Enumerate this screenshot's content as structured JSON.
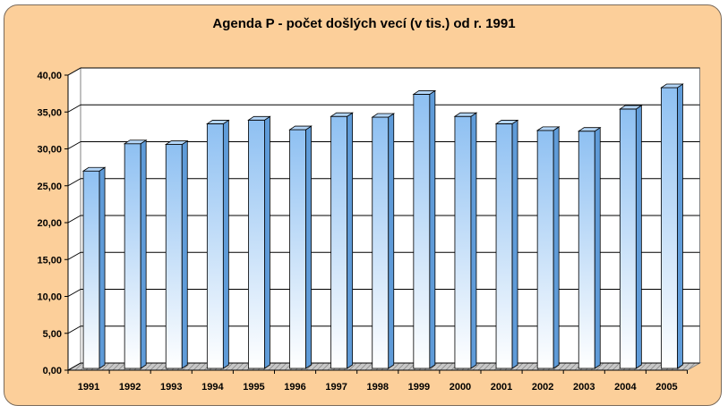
{
  "chart_data": {
    "type": "bar",
    "title": "Agenda P - počet došlých vecí (v tis.) od r. 1991",
    "categories": [
      "1991",
      "1992",
      "1993",
      "1994",
      "1995",
      "1996",
      "1997",
      "1998",
      "1999",
      "2000",
      "2001",
      "2002",
      "2003",
      "2004",
      "2005"
    ],
    "values": [
      27.0,
      30.7,
      30.6,
      33.4,
      33.9,
      32.6,
      34.4,
      34.3,
      37.4,
      34.4,
      33.4,
      32.5,
      32.4,
      35.4,
      38.3
    ],
    "y_ticks": [
      "0,00",
      "5,00",
      "10,00",
      "15,00",
      "20,00",
      "25,00",
      "30,00",
      "35,00",
      "40,00"
    ],
    "ylim": [
      0,
      40
    ],
    "grid": true,
    "legend": "none",
    "colors": {
      "frame_background": "#fccf9a",
      "bar_top": "#8ec0f2",
      "bar_bottom": "#ffffff",
      "bar_side": "#5f9bd8",
      "bar_cap": "#b3d5f7",
      "floor": "#c8c8c8"
    }
  }
}
